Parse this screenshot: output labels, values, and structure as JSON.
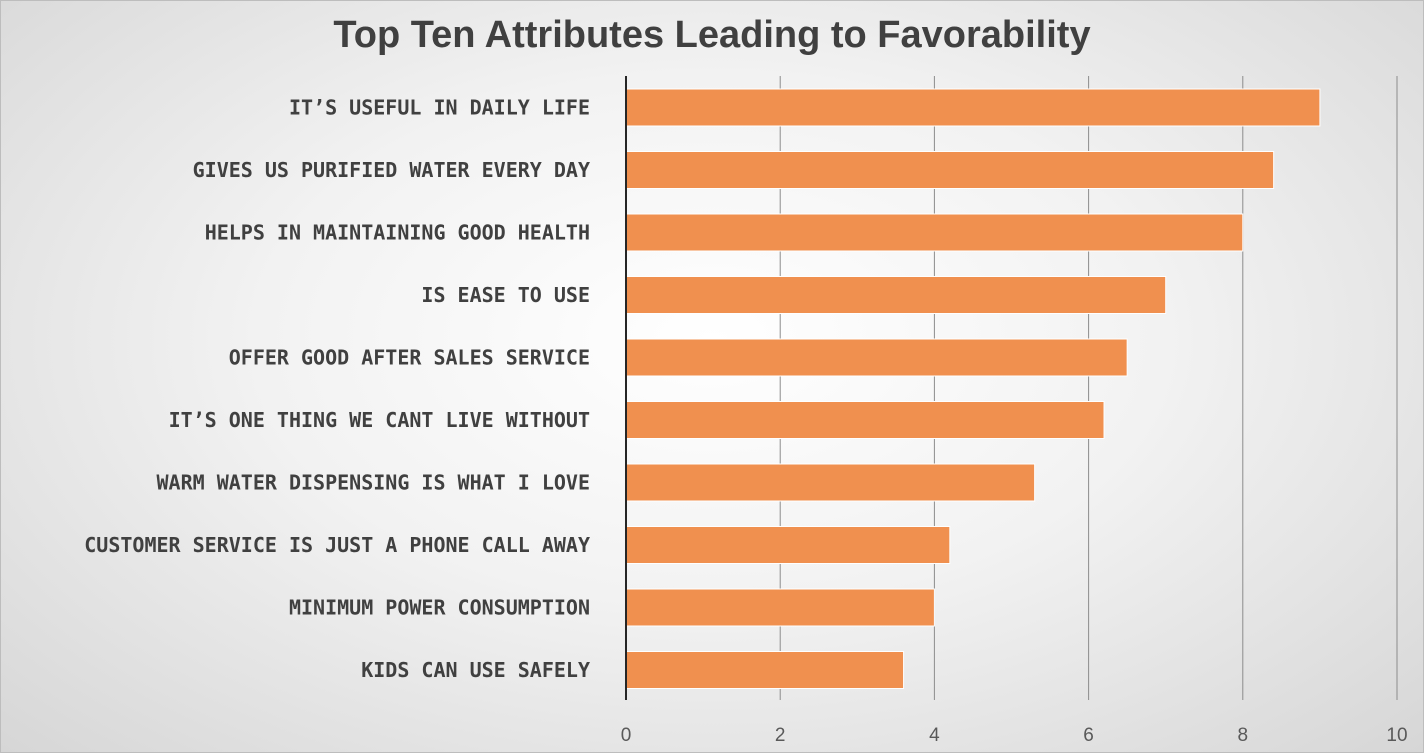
{
  "chart_data": {
    "type": "bar",
    "orientation": "horizontal",
    "title": "Top Ten Attributes Leading to Favorability",
    "xlabel": "",
    "ylabel": "",
    "xlim": [
      0,
      10
    ],
    "x_ticks": [
      "0",
      "2",
      "4",
      "6",
      "8",
      "10"
    ],
    "grid": true,
    "bar_color": "#f0904f",
    "categories": [
      "IT’S USEFUL IN DAILY LIFE",
      "GIVES US PURIFIED WATER EVERY DAY",
      "HELPS IN MAINTAINING GOOD HEALTH",
      "IS EASE TO USE",
      "OFFER GOOD AFTER SALES SERVICE",
      "IT’S ONE THING WE CANT LIVE WITHOUT",
      "WARM WATER DISPENSING IS WHAT I LOVE",
      "CUSTOMER SERVICE IS JUST A PHONE CALL AWAY",
      "MINIMUM POWER CONSUMPTION",
      "KIDS CAN USE SAFELY"
    ],
    "values": [
      9.0,
      8.4,
      8.0,
      7.0,
      6.5,
      6.2,
      5.3,
      4.2,
      4.0,
      3.6
    ]
  }
}
